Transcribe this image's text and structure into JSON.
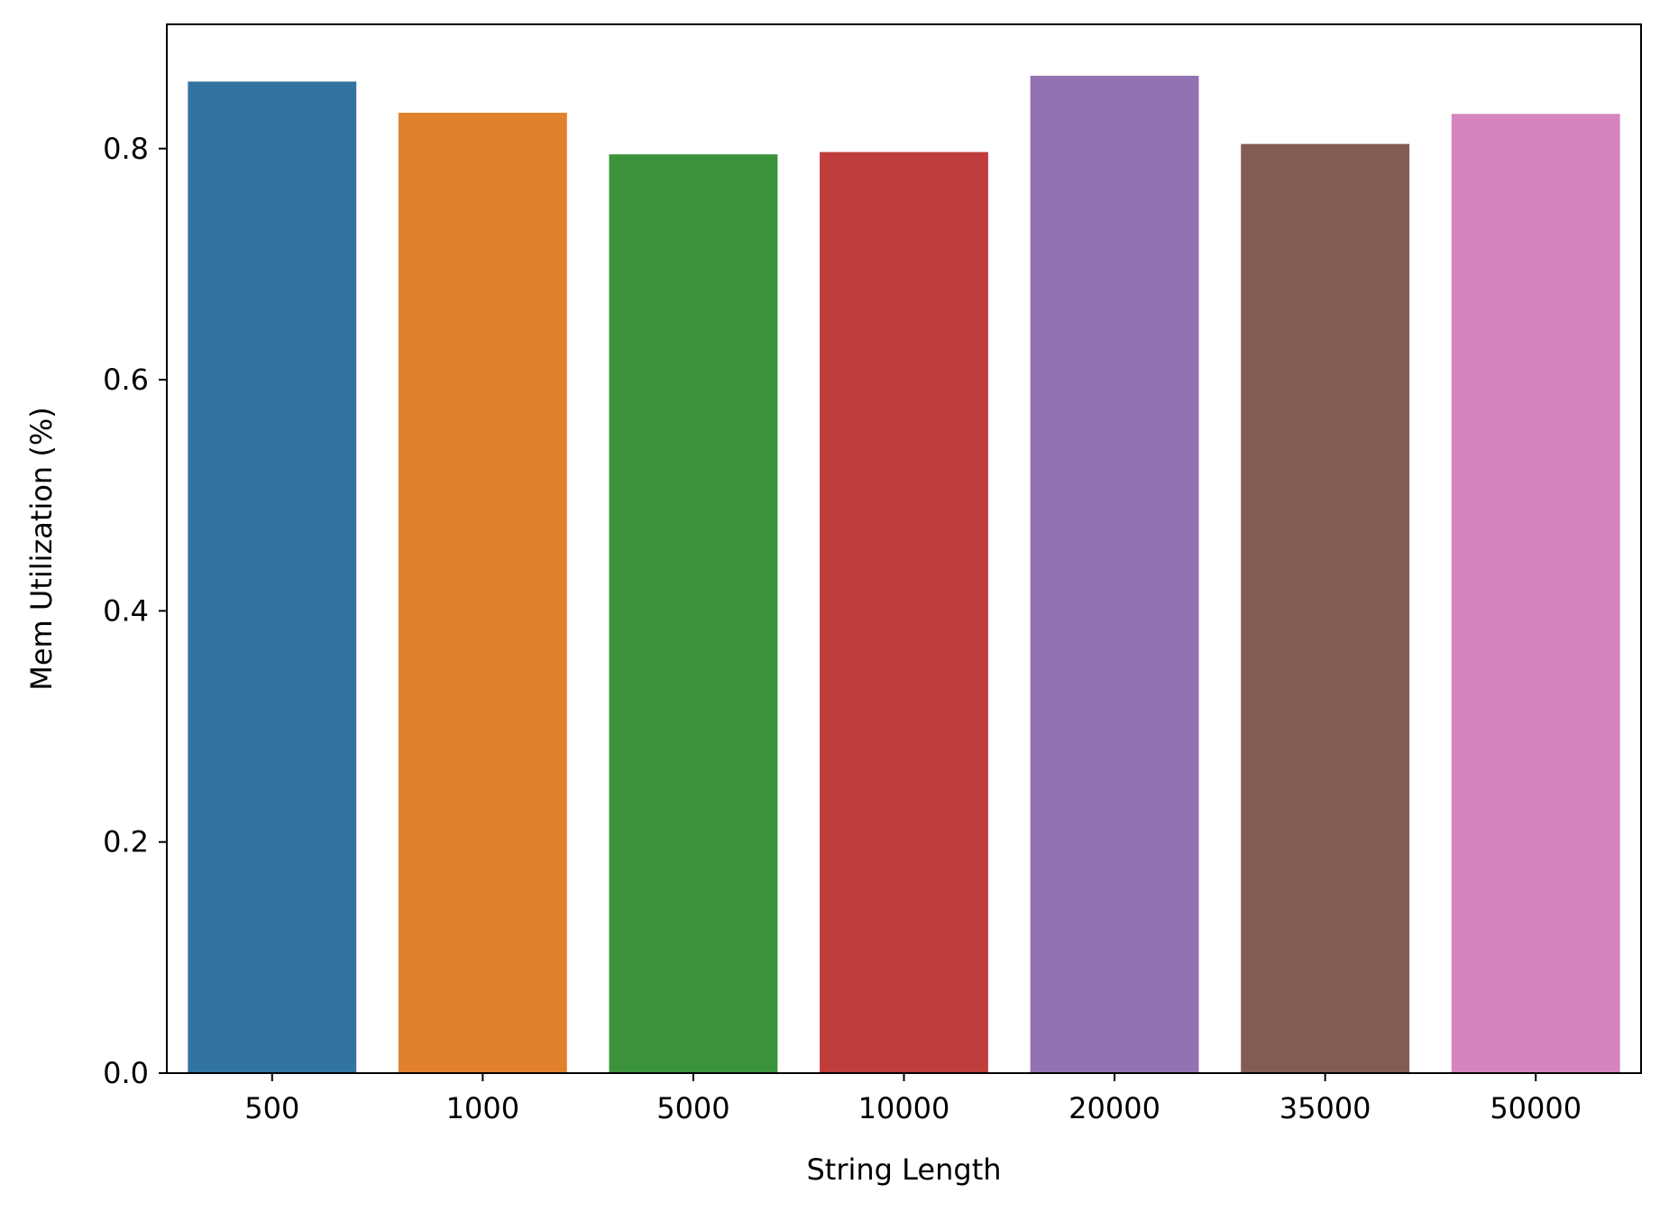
{
  "chart_data": {
    "type": "bar",
    "title": "",
    "xlabel": "String Length",
    "ylabel": "Mem Utilization (%)",
    "categories": [
      "500",
      "1000",
      "5000",
      "10000",
      "20000",
      "35000",
      "50000"
    ],
    "values": [
      0.858,
      0.831,
      0.795,
      0.797,
      0.863,
      0.804,
      0.83
    ],
    "colors": [
      "#3274a1",
      "#e1812c",
      "#3a923a",
      "#c03d3e",
      "#9372b2",
      "#845b53",
      "#d684bd"
    ],
    "ylim": [
      0,
      0.9075
    ],
    "yticks": [
      0.0,
      0.2,
      0.4,
      0.6,
      0.8
    ],
    "ytick_labels": [
      "0.0",
      "0.2",
      "0.4",
      "0.6",
      "0.8"
    ],
    "grid": false,
    "legend": "none"
  }
}
